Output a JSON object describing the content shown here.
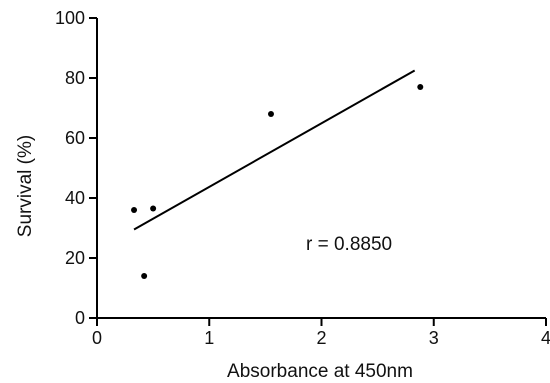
{
  "chart_data": {
    "type": "scatter",
    "title": "",
    "xlabel": "Absorbance at 450nm",
    "ylabel": "Survival (%)",
    "xlim": [
      0,
      4
    ],
    "ylim": [
      0,
      100
    ],
    "x_ticks": [
      0,
      1,
      2,
      3,
      4
    ],
    "y_ticks": [
      0,
      20,
      40,
      60,
      80,
      100
    ],
    "x_tick_labels": [
      "0",
      "1",
      "2",
      "3",
      "4"
    ],
    "y_tick_labels": [
      "0",
      "20",
      "40",
      "60",
      "80",
      "100"
    ],
    "grid": false,
    "series": [
      {
        "points": [
          {
            "x": 0.33,
            "y": 36
          },
          {
            "x": 0.5,
            "y": 36.5
          },
          {
            "x": 0.42,
            "y": 14
          },
          {
            "x": 1.55,
            "y": 68
          },
          {
            "x": 2.88,
            "y": 77
          }
        ]
      }
    ],
    "trendline": {
      "x": [
        0.33,
        2.83
      ],
      "y": [
        29.5,
        82.5
      ]
    },
    "annotation": "r = 0.8850",
    "colors": {
      "points": "#000000",
      "line": "#000000",
      "axis": "#000000"
    }
  }
}
